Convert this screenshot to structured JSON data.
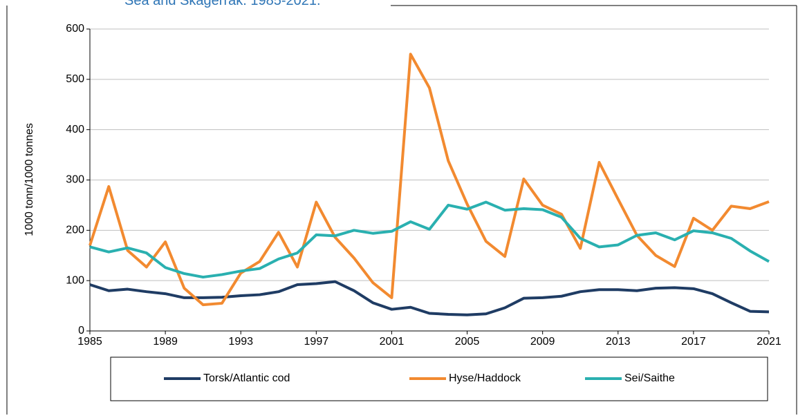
{
  "chart_data": {
    "type": "line",
    "title": "Sea and Skagerrak. 1985-2021.",
    "y_label": "1000 tonn/1000 tonnes",
    "x": [
      1985,
      1986,
      1987,
      1988,
      1989,
      1990,
      1991,
      1992,
      1993,
      1994,
      1995,
      1996,
      1997,
      1998,
      1999,
      2000,
      2001,
      2002,
      2003,
      2004,
      2005,
      2006,
      2007,
      2008,
      2009,
      2010,
      2011,
      2012,
      2013,
      2014,
      2015,
      2016,
      2017,
      2018,
      2019,
      2020,
      2021
    ],
    "series": [
      {
        "name": "Torsk/Atlantic cod",
        "color": "#1f3c64",
        "values": [
          92,
          80,
          83,
          78,
          74,
          66,
          66,
          67,
          70,
          72,
          78,
          92,
          94,
          98,
          80,
          56,
          43,
          47,
          35,
          33,
          32,
          34,
          46,
          65,
          66,
          69,
          78,
          82,
          82,
          80,
          85,
          86,
          84,
          74,
          56,
          39,
          38
        ]
      },
      {
        "name": "Hyse/Haddock",
        "color": "#f28a30",
        "values": [
          170,
          287,
          160,
          127,
          177,
          85,
          52,
          55,
          115,
          138,
          196,
          127,
          256,
          186,
          145,
          96,
          66,
          550,
          483,
          338,
          252,
          178,
          148,
          302,
          250,
          232,
          164,
          335,
          262,
          190,
          150,
          128,
          224,
          200,
          248,
          243,
          257
        ]
      },
      {
        "name": "Sei/Saithe",
        "color": "#2ab0b0",
        "values": [
          167,
          157,
          165,
          155,
          126,
          114,
          107,
          112,
          119,
          124,
          143,
          155,
          191,
          189,
          200,
          194,
          198,
          217,
          202,
          250,
          242,
          256,
          240,
          243,
          241,
          226,
          184,
          167,
          171,
          190,
          195,
          181,
          199,
          195,
          184,
          159,
          138
        ]
      }
    ],
    "xlim": [
      1985,
      2021
    ],
    "xticks": [
      1985,
      1989,
      1993,
      1997,
      2001,
      2005,
      2009,
      2013,
      2017,
      2021
    ],
    "ylim": [
      0,
      600
    ],
    "yticks": [
      0,
      100,
      200,
      300,
      400,
      500,
      600
    ],
    "grid": true,
    "legend": "bottom"
  }
}
